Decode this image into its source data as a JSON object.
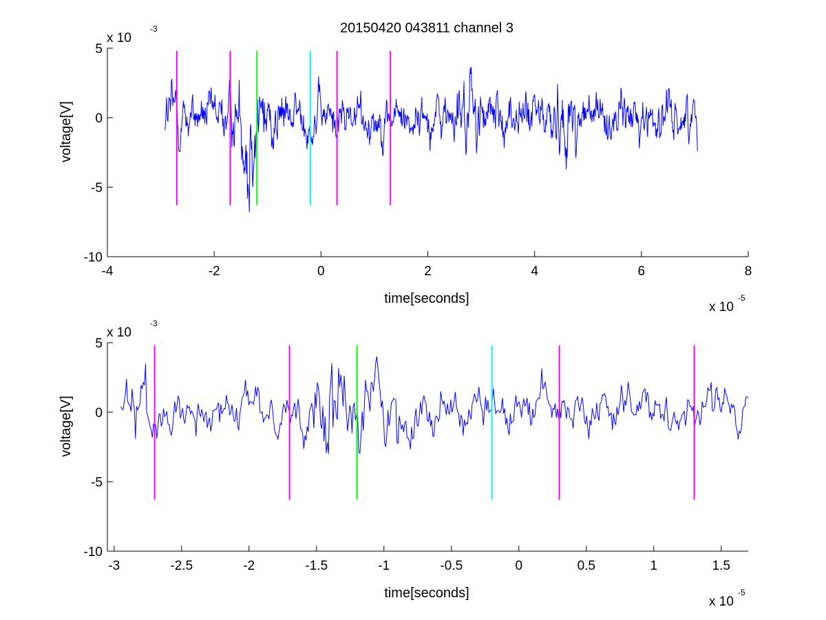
{
  "figure": {
    "title": "20150420 043811 channel 3"
  },
  "chart_data": [
    {
      "type": "line",
      "title": "20150420 043811 channel 3",
      "xlabel": "time[seconds]",
      "ylabel": "voltage[V]",
      "x_scale_label": "x 10",
      "x_scale_exp": "-5",
      "y_scale_label": "x 10",
      "y_scale_exp": "-3",
      "xlim": [
        -4,
        8
      ],
      "ylim": [
        -10,
        5
      ],
      "xticks": [
        "-4",
        "-2",
        "0",
        "2",
        "4",
        "6",
        "8"
      ],
      "xtick_values": [
        -4,
        -2,
        0,
        2,
        4,
        6,
        8
      ],
      "yticks": [
        "5",
        "0",
        "-5",
        "-10"
      ],
      "ytick_values": [
        5,
        0,
        -5,
        -10
      ],
      "grid": false,
      "signal": {
        "color": "#0000ff",
        "x_range": [
          -2.92,
          7.05
        ],
        "points": 1100
      },
      "markers": [
        {
          "x": -2.7,
          "color": "#ff00ff",
          "ymin": -6.3,
          "ymax": 4.8
        },
        {
          "x": -1.7,
          "color": "#ff00ff",
          "ymin": -6.3,
          "ymax": 4.8
        },
        {
          "x": -1.2,
          "color": "#00ff00",
          "ymin": -6.3,
          "ymax": 4.8
        },
        {
          "x": -0.2,
          "color": "#00ffff",
          "ymin": -6.3,
          "ymax": 4.8
        },
        {
          "x": 0.3,
          "color": "#ff00ff",
          "ymin": -6.3,
          "ymax": 4.8
        },
        {
          "x": 1.3,
          "color": "#ff00ff",
          "ymin": -6.3,
          "ymax": 4.8
        }
      ]
    },
    {
      "type": "line",
      "title": "",
      "xlabel": "time[seconds]",
      "ylabel": "voltage[V]",
      "x_scale_label": "x 10",
      "x_scale_exp": "-5",
      "y_scale_label": "x 10",
      "y_scale_exp": "-3",
      "xlim": [
        -3.05,
        1.7
      ],
      "ylim": [
        -10,
        5
      ],
      "xticks": [
        "-3",
        "-2.5",
        "-2",
        "-1.5",
        "-1",
        "-0.5",
        "0",
        "0.5",
        "1",
        "1.5"
      ],
      "xtick_values": [
        -3,
        -2.5,
        -2,
        -1.5,
        -1,
        -0.5,
        0,
        0.5,
        1,
        1.5
      ],
      "yticks": [
        "5",
        "0",
        "-5",
        "-10"
      ],
      "ytick_values": [
        5,
        0,
        -5,
        -10
      ],
      "grid": false,
      "signal": {
        "color": "#0000ff",
        "x_range": [
          -2.95,
          1.7
        ],
        "points": 560
      },
      "markers": [
        {
          "x": -2.7,
          "color": "#ff00ff",
          "ymin": -6.3,
          "ymax": 4.8
        },
        {
          "x": -1.7,
          "color": "#ff00ff",
          "ymin": -6.3,
          "ymax": 4.8
        },
        {
          "x": -1.2,
          "color": "#00ff00",
          "ymin": -6.3,
          "ymax": 4.8
        },
        {
          "x": -0.2,
          "color": "#00ffff",
          "ymin": -6.3,
          "ymax": 4.8
        },
        {
          "x": 0.3,
          "color": "#ff00ff",
          "ymin": -6.3,
          "ymax": 4.8
        },
        {
          "x": 1.3,
          "color": "#ff00ff",
          "ymin": -6.3,
          "ymax": 4.8
        }
      ]
    }
  ]
}
